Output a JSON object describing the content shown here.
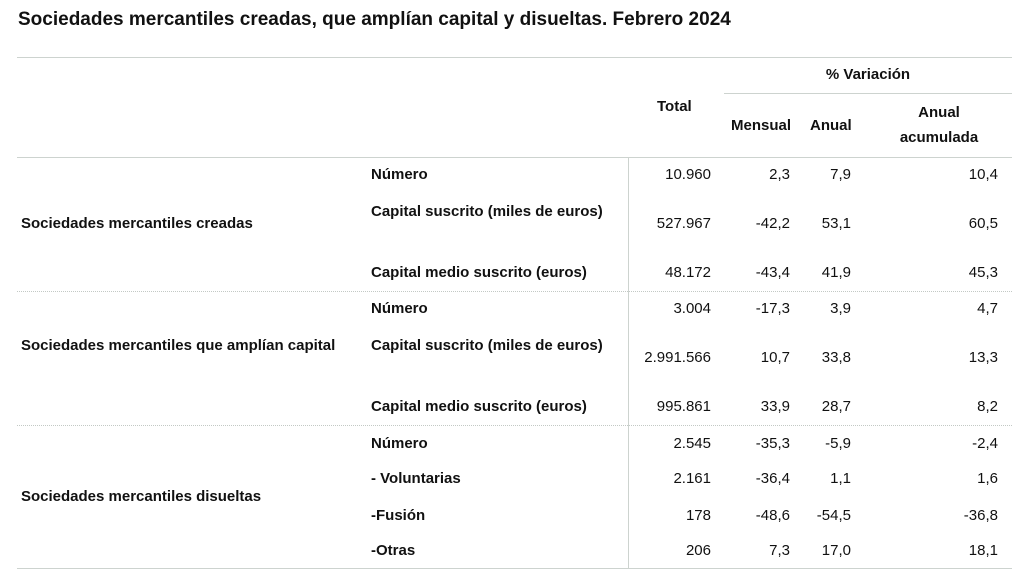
{
  "title": "Sociedades mercantiles creadas, que amplían capital y disueltas. Febrero 2024",
  "header": {
    "total": "Total",
    "variacion": "% Variación",
    "mensual": "Mensual",
    "anual": "Anual",
    "anual_acumulada": "Anual acumulada"
  },
  "groups": [
    {
      "name": "Sociedades mercantiles creadas",
      "rows": [
        {
          "label": "Número",
          "total": "10.960",
          "mensual": "2,3",
          "anual": "7,9",
          "acumulada": "10,4"
        },
        {
          "label": "Capital suscrito (miles de euros)",
          "total": "527.967",
          "mensual": "-42,2",
          "anual": "53,1",
          "acumulada": "60,5"
        },
        {
          "label": "Capital medio suscrito (euros)",
          "total": "48.172",
          "mensual": "-43,4",
          "anual": "41,9",
          "acumulada": "45,3"
        }
      ]
    },
    {
      "name": "Sociedades mercantiles que amplían capital",
      "rows": [
        {
          "label": "Número",
          "total": "3.004",
          "mensual": "-17,3",
          "anual": "3,9",
          "acumulada": "4,7"
        },
        {
          "label": "Capital suscrito (miles de euros)",
          "total": "2.991.566",
          "mensual": "10,7",
          "anual": "33,8",
          "acumulada": "13,3"
        },
        {
          "label": "Capital medio suscrito (euros)",
          "total": "995.861",
          "mensual": "33,9",
          "anual": "28,7",
          "acumulada": "8,2"
        }
      ]
    },
    {
      "name": "Sociedades mercantiles disueltas",
      "rows": [
        {
          "label": "Número",
          "total": "2.545",
          "mensual": "-35,3",
          "anual": "-5,9",
          "acumulada": "-2,4"
        },
        {
          "label": "- Voluntarias",
          "total": "2.161",
          "mensual": "-36,4",
          "anual": "1,1",
          "acumulada": "1,6"
        },
        {
          "label": "-Fusión",
          "total": "178",
          "mensual": "-48,6",
          "anual": "-54,5",
          "acumulada": "-36,8"
        },
        {
          "label": "-Otras",
          "total": "206",
          "mensual": "7,3",
          "anual": "17,0",
          "acumulada": "18,1"
        }
      ]
    }
  ]
}
